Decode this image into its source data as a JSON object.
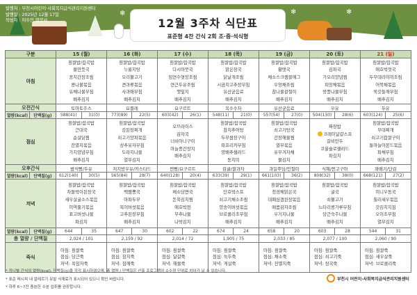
{
  "header": {
    "publisher": "발행처 : 부천시어린이·사회복지급식관리지원센터",
    "date": "발행일 : 2025년 12월 17일",
    "author": "작성자 : 이수민 영양사",
    "title": "12월 3주차 식단표",
    "subtitle": "표준형 4찬 간식 2회 조·중·석식형"
  },
  "table": {
    "corner": "구분",
    "days": [
      "15 (월)",
      "16 (화)",
      "17 (수)",
      "18 (목)",
      "19 (금)",
      "20 (토)",
      "21 (일)"
    ],
    "holiday_color": "#e02020",
    "labels": {
      "breakfast": "아침",
      "am_snack": "오전간식",
      "kcal": "열량(kcal)",
      "protein": "단백질(g)",
      "lunch": "점심",
      "pm_snack": "오후간식",
      "dinner": "저녁",
      "total": "총 열량 / 단백질",
      "porridge": "죽식"
    },
    "breakfast": [
      [
        "흰쌀밥/잡곡밥",
        "물만둣국",
        "꽁치간장조림",
        "콩나물볶음",
        "유채나물무침",
        "배추김치"
      ],
      [
        "흰쌀밥/잡곡밥",
        "누룽지탕",
        "오리불고기",
        "견과류볶음",
        "사과배무침",
        "배추김치"
      ],
      [
        "흰쌀밥/잡곡밥",
        "다시마뭇국",
        "임연수엿장조림",
        "연근두유조림",
        "깻잎지",
        "배추김치"
      ],
      [
        "흰쌀밥/잡곡밥",
        "맑은장국",
        "닭날개조림",
        "시금치고추장무침",
        "유산균음료",
        "배추김치"
      ],
      [
        "흰쌀밥/잡곡밥",
        "황탯국",
        "채소스크램블에그",
        "우엉채조림",
        "참나물겉절이",
        "배추김치"
      ],
      [
        "흰쌀밥/잡곡밥",
        "김파국",
        "가오리양념찜",
        "피망채볶음",
        "방풍나물무침",
        "배추김치"
      ],
      [
        "흰쌀밥/잡곡밥",
        "애호박젓국",
        "두부데리야끼조림",
        "어묵채볶음",
        "쑥갓들깨무침",
        "배추김치"
      ]
    ],
    "am_snack": [
      "토마토주스",
      "요플레",
      "요구르트",
      "옥수수차",
      "유산균음료",
      "우유",
      "두유"
    ],
    "am_nutrition": [
      [
        "588(41)",
        "31(0)"
      ],
      [
        "773(89)",
        "22(5)"
      ],
      [
        "603(42)",
        "26(1)"
      ],
      [
        "548(11)",
        "21(0)"
      ],
      [
        "557(54)",
        "27(0)"
      ],
      [
        "504(130)",
        "28(6)"
      ],
      [
        "603(124)",
        "25(6)"
      ]
    ],
    "lunch": [
      [
        "흰쌀밥/잡곡밥",
        "근대국",
        "순살닭찜",
        "잔멸치볶음",
        "가지양념무침",
        "배추김치"
      ],
      [
        "흰쌀밥/잡곡밥",
        "강된장찌개",
        "쇠고기양파볶음",
        "상추유자무침",
        "도라지나물",
        "열무김치"
      ],
      [
        "오므라이스",
        "감자국",
        "너비아니구이",
        "마늘종간장지",
        "배추김치"
      ],
      [
        "흰쌀밥/잡곡밥",
        "참치추어탕",
        "두부쌈장구이",
        "파프리카무침",
        "양배추샐러드",
        "동치미"
      ],
      [
        "흰쌀밥/잡곡밥",
        "쇠고기탕국",
        "간장해물찜",
        "열무볶음",
        "유부겨자채",
        "물김치"
      ],
      [
        "짜장밥",
        "크레미달걀스프",
        "갈비만두",
        "코울슬로샐러드",
        "파김치"
      ],
      [
        "흰쌀밥/잡곡밥",
        "부대찌개",
        "쇠고기찹쌀구이",
        "통마늘아몬드볶음",
        "파채무침",
        "배추김치"
      ]
    ],
    "allergy_marked_item": "크레미달걀스프",
    "pm_snack": [
      "밤식빵/두유",
      "저지방우유/카스타드",
      "찐빵/요구르트",
      "감귤/쌀과자",
      "과일푸딩/인절미",
      "식혜/찐고구마",
      "꽈배기/단감"
    ],
    "pm_nutrition": [
      [
        "612(140)",
        "30(5)"
      ],
      [
        "565(84)",
        "28(7)"
      ],
      [
        "640(128)",
        "20(4)"
      ],
      [
        "633(39)",
        "29(1)"
      ],
      [
        "661(103)",
        "36(2)"
      ],
      [
        "808(32)",
        "38(0)"
      ],
      [
        "668(121)",
        "27(2)"
      ]
    ],
    "dinner": [
      [
        "흰쌀밥/잡곡밥",
        "차돌박이된장국",
        "새우살굴소스볶음",
        "미역줄기볶음",
        "표고버섯나물",
        "파김치"
      ],
      [
        "흰쌀밥/잡곡밥",
        "백짬뽕국",
        "마파두부",
        "목이버섯볶음",
        "고추된장무침",
        "배추김치"
      ],
      [
        "흰쌀밥/잡곡밥",
        "채소당면국",
        "돈육김치찜",
        "애호박전",
        "부추나물",
        "나박김치"
      ],
      [
        "흰쌀밥/잡곡밥",
        "단호박스프",
        "쇠고기채소조림",
        "양송이버섯볶음",
        "브로콜리초무침",
        "배추김치"
      ],
      [
        "흰쌀밥/잡곡밥",
        "청경채맑은국",
        "대패삼겹된장볶음",
        "매콤감자조림",
        "우거지나물",
        "배추김치"
      ],
      [
        "흰쌀밥/잡곡밥",
        "굴국",
        "쇠불고기",
        "느타리콩가루무침",
        "당근숙주나물",
        "배추김치"
      ],
      [
        "흰쌀밥/잡곡밥",
        "미니우동국",
        "칠리새우볶음",
        "갓김치지짐",
        "오이초무침",
        "열무김치"
      ]
    ],
    "dinner_nutrition": [
      [
        "644",
        "35"
      ],
      [
        "647",
        "30"
      ],
      [
        "602",
        "22"
      ],
      [
        "674",
        "24"
      ],
      [
        "658",
        "20"
      ],
      [
        "603",
        "28"
      ],
      [
        "544",
        "31"
      ]
    ],
    "totals": [
      "2,024  /  101",
      "2,159  /  92",
      "2,014  /  72",
      "1,905  /  75",
      "2,033  /  85",
      "2,077  /  100",
      "2,060  /  90"
    ],
    "porridge": [
      [
        "아침: 흰쌀죽",
        "점심: 당근죽",
        "저녁: 흑임자죽"
      ],
      [
        "아침: 흰쌀죽",
        "점심: 참치죽",
        "저녁: 참깨죽"
      ],
      [
        "아침: 흰쌀죽",
        "점심: 달걀죽",
        "저녁: 해물죽"
      ],
      [
        "아침: 흰쌀죽",
        "점심: 녹두죽",
        "저녁: 게살죽"
      ],
      [
        "아침: 흰쌀죽",
        "점심: 채소죽",
        "저녁: 잔멸치죽"
      ],
      [
        "아침: 흰쌀죽",
        "점심: 쇠고기죽",
        "저녁: 장국죽"
      ],
      [
        "아침: 흰쌀죽",
        "점심: 새우살죽",
        "저녁: 브로콜리죽"
      ]
    ]
  },
  "notes": [
    "* 끼니별 간식의 열량(kcal), 단백질(g)을 각각 표시하였으며, 총 열량 / 단백질은 산출 프로그램의 소수점 단위로 차이가 날 수 있습니다.",
    "* 표준 레시피 내 알레르기 유발 식재료가 표시되어 있으니 확인 바랍니다.",
    "* 하루 6~7잔 충분한 수분 섭취를 권장합니다."
  ],
  "footer_logo": "부천시 어린이·사회복지급식관리지원센터",
  "colors": {
    "banner": "#6e9141",
    "label_bg": "#dbe9cd",
    "header_bg": "#c9deb4"
  }
}
